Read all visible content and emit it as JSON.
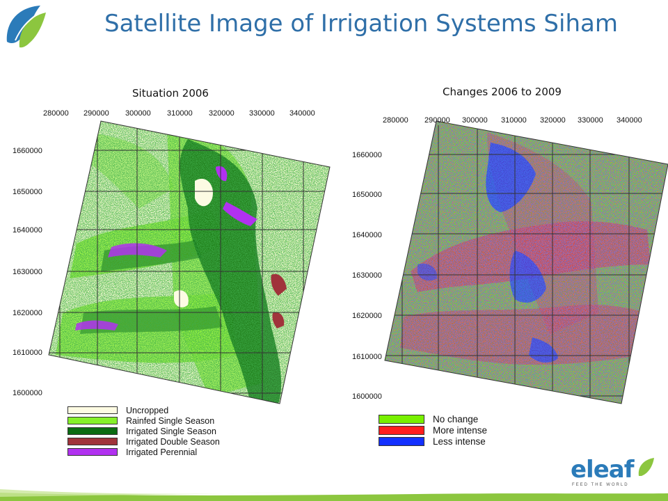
{
  "title": "Satellite Image of Irrigation Systems Siham",
  "left_map": {
    "title": "Situation 2006",
    "x_ticks": [
      "280000",
      "290000",
      "300000",
      "310000",
      "320000",
      "330000",
      "340000"
    ],
    "y_ticks": [
      "1660000",
      "1650000",
      "1640000",
      "1630000",
      "1620000",
      "1610000",
      "1600000"
    ],
    "legend": [
      {
        "label": "Uncropped",
        "color": "#fdfbe3"
      },
      {
        "label": "Rainfed Single Season",
        "color": "#86f02b"
      },
      {
        "label": "Irrigated Single Season",
        "color": "#0b6b12"
      },
      {
        "label": "Irrigated Double Season",
        "color": "#a0333b"
      },
      {
        "label": "Irrigated Perennial",
        "color": "#b131f0"
      }
    ]
  },
  "right_map": {
    "title": "Changes 2006 to 2009",
    "x_ticks": [
      "280000",
      "290000",
      "300000",
      "310000",
      "320000",
      "330000",
      "340000"
    ],
    "y_ticks": [
      "1660000",
      "1650000",
      "1640000",
      "1630000",
      "1620000",
      "1610000",
      "1600000"
    ],
    "legend": [
      {
        "label": "No change",
        "color": "#78f000"
      },
      {
        "label": "More intense",
        "color": "#ff1e1e"
      },
      {
        "label": "Less intense",
        "color": "#1330ff"
      }
    ]
  },
  "brand": {
    "wordmark": "eleaf",
    "tagline": "FEED THE WORLD",
    "colors": {
      "title": "#2f6fa8",
      "leaf_green": "#8cc63f",
      "leaf_blue": "#2b7bb9"
    }
  }
}
